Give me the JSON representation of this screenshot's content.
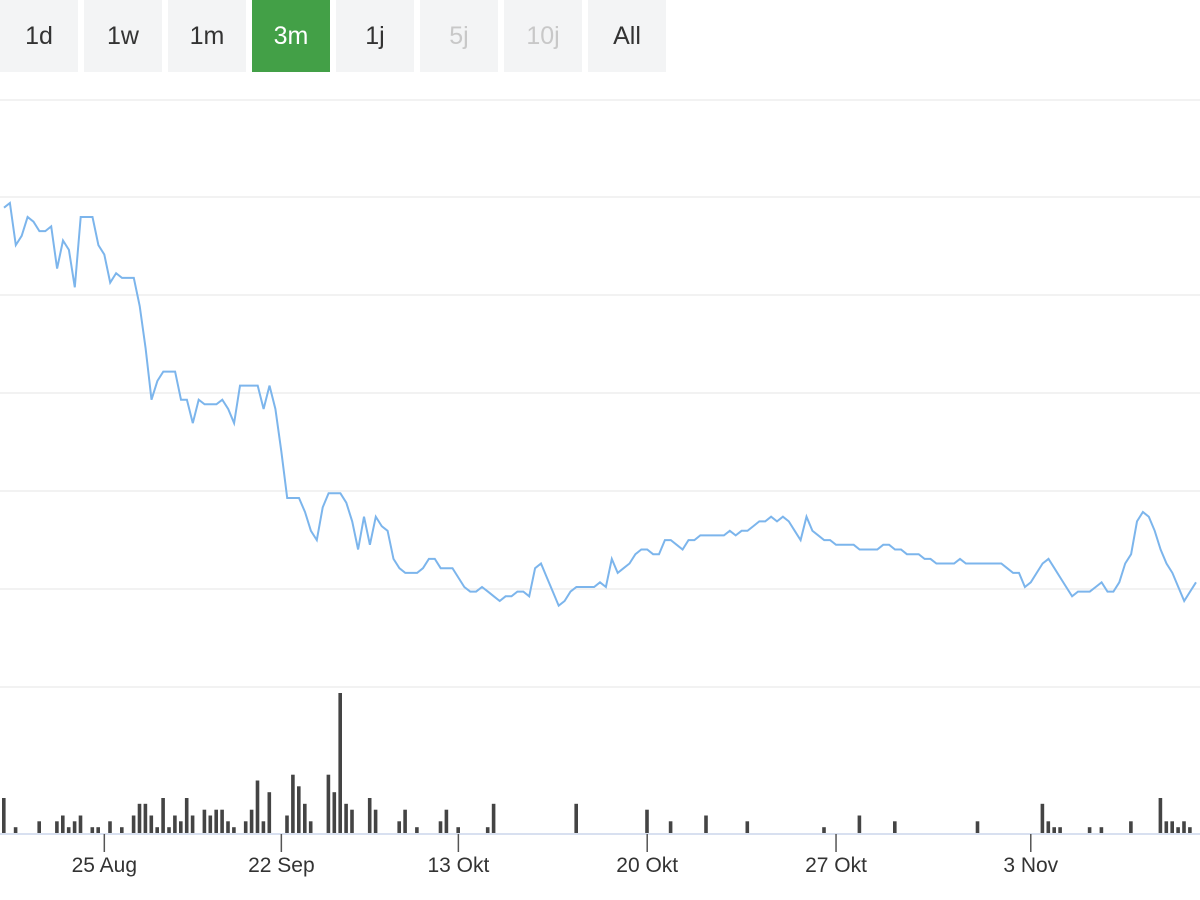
{
  "range_selector": {
    "buttons": [
      {
        "label": "1d",
        "state": "normal"
      },
      {
        "label": "1w",
        "state": "normal"
      },
      {
        "label": "1m",
        "state": "normal"
      },
      {
        "label": "3m",
        "state": "active"
      },
      {
        "label": "1j",
        "state": "normal"
      },
      {
        "label": "5j",
        "state": "disabled"
      },
      {
        "label": "10j",
        "state": "disabled"
      },
      {
        "label": "All",
        "state": "normal"
      }
    ],
    "active_color": "#43a047"
  },
  "chart_data": {
    "type": "line",
    "title": "",
    "xlabel": "",
    "ylabel": "",
    "grid": true,
    "line_color": "#7cb5ec",
    "volume_color": "#444444",
    "x_ticks": [
      {
        "label": "25 Aug",
        "index": 17
      },
      {
        "label": "22 Sep",
        "index": 47
      },
      {
        "label": "13 Okt",
        "index": 77
      },
      {
        "label": "20 Okt",
        "index": 109
      },
      {
        "label": "27 Okt",
        "index": 141
      },
      {
        "label": "3 Nov",
        "index": 174
      }
    ],
    "price": [
      6.03,
      6.04,
      5.95,
      5.97,
      6.01,
      6.0,
      5.98,
      5.98,
      5.99,
      5.9,
      5.96,
      5.94,
      5.86,
      6.01,
      6.01,
      6.01,
      5.95,
      5.93,
      5.87,
      5.89,
      5.88,
      5.88,
      5.88,
      5.82,
      5.73,
      5.62,
      5.66,
      5.68,
      5.68,
      5.68,
      5.62,
      5.62,
      5.57,
      5.62,
      5.61,
      5.61,
      5.61,
      5.62,
      5.6,
      5.57,
      5.65,
      5.65,
      5.65,
      5.65,
      5.6,
      5.65,
      5.6,
      5.51,
      5.41,
      5.41,
      5.41,
      5.38,
      5.34,
      5.32,
      5.39,
      5.42,
      5.42,
      5.42,
      5.4,
      5.36,
      5.3,
      5.37,
      5.31,
      5.37,
      5.35,
      5.34,
      5.28,
      5.26,
      5.25,
      5.25,
      5.25,
      5.26,
      5.28,
      5.28,
      5.26,
      5.26,
      5.26,
      5.24,
      5.22,
      5.21,
      5.21,
      5.22,
      5.21,
      5.2,
      5.19,
      5.2,
      5.2,
      5.21,
      5.21,
      5.2,
      5.26,
      5.27,
      5.24,
      5.21,
      5.18,
      5.19,
      5.21,
      5.22,
      5.22,
      5.22,
      5.22,
      5.23,
      5.22,
      5.28,
      5.25,
      5.26,
      5.27,
      5.29,
      5.3,
      5.3,
      5.29,
      5.29,
      5.32,
      5.32,
      5.31,
      5.3,
      5.32,
      5.32,
      5.33,
      5.33,
      5.33,
      5.33,
      5.33,
      5.34,
      5.33,
      5.34,
      5.34,
      5.35,
      5.36,
      5.36,
      5.37,
      5.36,
      5.37,
      5.36,
      5.34,
      5.32,
      5.37,
      5.34,
      5.33,
      5.32,
      5.32,
      5.31,
      5.31,
      5.31,
      5.31,
      5.3,
      5.3,
      5.3,
      5.3,
      5.31,
      5.31,
      5.3,
      5.3,
      5.29,
      5.29,
      5.29,
      5.28,
      5.28,
      5.27,
      5.27,
      5.27,
      5.27,
      5.28,
      5.27,
      5.27,
      5.27,
      5.27,
      5.27,
      5.27,
      5.27,
      5.26,
      5.25,
      5.25,
      5.22,
      5.23,
      5.25,
      5.27,
      5.28,
      5.26,
      5.24,
      5.22,
      5.2,
      5.21,
      5.21,
      5.21,
      5.22,
      5.23,
      5.21,
      5.21,
      5.23,
      5.27,
      5.29,
      5.36,
      5.38,
      5.37,
      5.34,
      5.3,
      5.27,
      5.25,
      5.22,
      5.19,
      5.21,
      5.23
    ],
    "volume": [
      6,
      0,
      1,
      0,
      0,
      0,
      2,
      0,
      0,
      2,
      3,
      1,
      2,
      3,
      0,
      1,
      1,
      0,
      2,
      0,
      1,
      0,
      3,
      5,
      5,
      3,
      1,
      6,
      1,
      3,
      2,
      6,
      3,
      0,
      4,
      3,
      4,
      4,
      2,
      1,
      0,
      2,
      4,
      9,
      2,
      7,
      0,
      0,
      3,
      10,
      8,
      5,
      2,
      0,
      0,
      10,
      7,
      24,
      5,
      4,
      0,
      0,
      6,
      4,
      0,
      0,
      0,
      2,
      4,
      0,
      1,
      0,
      0,
      0,
      2,
      4,
      0,
      1,
      0,
      0,
      0,
      0,
      1,
      5,
      0,
      0,
      0,
      0,
      0,
      0,
      0,
      0,
      0,
      0,
      0,
      0,
      0,
      5,
      0,
      0,
      0,
      0,
      0,
      0,
      0,
      0,
      0,
      0,
      0,
      4,
      0,
      0,
      0,
      2,
      0,
      0,
      0,
      0,
      0,
      3,
      0,
      0,
      0,
      0,
      0,
      0,
      2,
      0,
      0,
      0,
      0,
      0,
      0,
      0,
      0,
      0,
      0,
      0,
      0,
      1,
      0,
      0,
      0,
      0,
      0,
      3,
      0,
      0,
      0,
      0,
      0,
      2,
      0,
      0,
      0,
      0,
      0,
      0,
      0,
      0,
      0,
      0,
      0,
      0,
      0,
      2,
      0,
      0,
      0,
      0,
      0,
      0,
      0,
      0,
      0,
      0,
      5,
      2,
      1,
      1,
      0,
      0,
      0,
      0,
      1,
      0,
      1,
      0,
      0,
      0,
      0,
      2,
      0,
      0,
      0,
      0,
      6,
      2,
      2,
      1,
      2,
      1
    ]
  }
}
